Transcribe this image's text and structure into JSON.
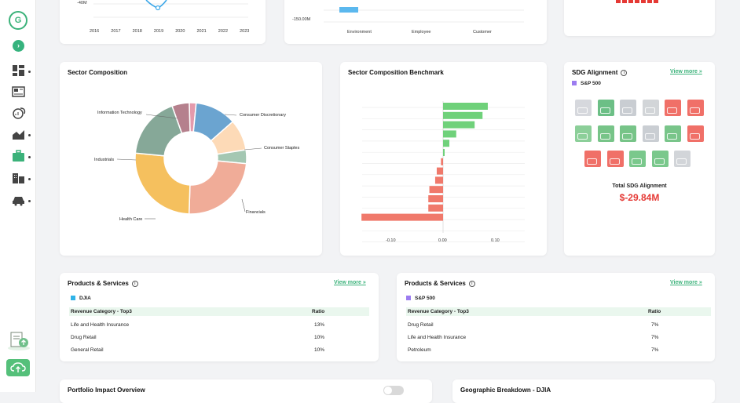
{
  "app": {
    "logo_text": "G"
  },
  "sidebar": {
    "collapse_icon": "chevron-right-icon",
    "items": [
      {
        "icon": "dashboard-icon"
      },
      {
        "icon": "newspaper-icon"
      },
      {
        "icon": "leaf-analytics-icon"
      },
      {
        "icon": "area-chart-icon"
      },
      {
        "icon": "briefcase-icon"
      },
      {
        "icon": "buildings-icon"
      },
      {
        "icon": "car-icon"
      }
    ],
    "upload_icon": "cloud-upload-icon"
  },
  "top": {
    "left_axis_label": "-40M",
    "years": [
      "2016",
      "2017",
      "2018",
      "2019",
      "2020",
      "2021",
      "2022",
      "2023"
    ],
    "mid_axis_label": "-150.00M",
    "mid_categories": [
      "Environment",
      "Employee",
      "Customer"
    ]
  },
  "sector_composition": {
    "title": "Sector Composition",
    "labels": {
      "it": "Information Technology",
      "cd": "Consumer Discretionary",
      "cs": "Consumer Staples",
      "ind": "Industrials",
      "fin": "Financials",
      "hc": "Health Care"
    }
  },
  "benchmark": {
    "title": "Sector Composition Benchmark",
    "ticks": [
      "-0.10",
      "0.00",
      "0.10"
    ]
  },
  "sdg": {
    "title": "SDG Alignment",
    "view_more": "View more",
    "index": "S&P 500",
    "total_label": "Total SDG Alignment",
    "total_value": "$-29.84M"
  },
  "products_djia": {
    "title": "Products & Services",
    "view_more": "View more",
    "index": "DJIA",
    "col1": "Revenue Category - Top3",
    "col2": "Ratio",
    "rows": [
      {
        "cat": "Life and Health Insurance",
        "ratio": "13%"
      },
      {
        "cat": "Drug Retail",
        "ratio": "10%"
      },
      {
        "cat": "General Retail",
        "ratio": "10%"
      }
    ]
  },
  "products_sp": {
    "title": "Products & Services",
    "view_more": "View more",
    "index": "S&P 500",
    "col1": "Revenue Category - Top3",
    "col2": "Ratio",
    "rows": [
      {
        "cat": "Drug Retail",
        "ratio": "7%"
      },
      {
        "cat": "Life and Health Insurance",
        "ratio": "7%"
      },
      {
        "cat": "Petroleum",
        "ratio": "7%"
      }
    ]
  },
  "bottom": {
    "impact_title": "Portfolio Impact Overview",
    "geo_title": "Geographic Breakdown - DJIA"
  },
  "colors": {
    "accent": "#3bb27a",
    "positive": "#6fd17a",
    "negative": "#f0796b",
    "total": "#e53935"
  },
  "chart_data": [
    {
      "type": "pie",
      "series": [
        {
          "values": [
            2,
            12,
            9,
            4,
            24,
            26,
            18,
            5
          ]
        }
      ],
      "categories": [
        "Information Technology",
        "Consumer Discretionary",
        "Consumer Staples",
        "",
        "Financials",
        "Health Care",
        "Industrials",
        ""
      ]
    },
    {
      "type": "bar",
      "orientation": "horizontal",
      "values": [
        0.085,
        0.075,
        0.06,
        0.025,
        0.012,
        0.003,
        -0.004,
        -0.012,
        -0.015,
        -0.026,
        -0.028,
        -0.028,
        -0.155
      ],
      "xlim": [
        -0.155,
        0.12
      ],
      "x_ticks": [
        "-0.10",
        "0.00",
        "0.10"
      ]
    }
  ]
}
